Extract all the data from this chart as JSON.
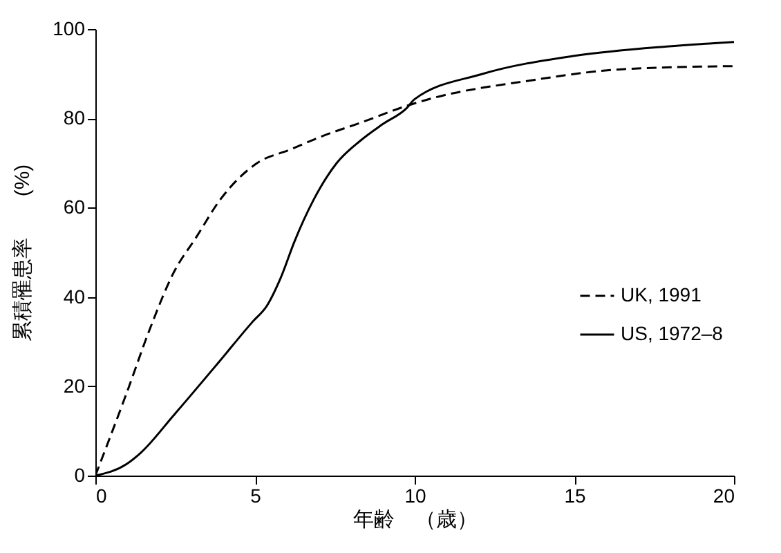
{
  "chart_data": {
    "type": "line",
    "xlabel": "年齢　（歳）",
    "ylabel": "累積罹患率　　(%)",
    "xlim": [
      0,
      20
    ],
    "xticks": [
      0,
      5,
      10,
      15,
      20
    ],
    "ylim": [
      0,
      100
    ],
    "yticks": [
      0,
      20,
      40,
      60,
      80,
      100
    ],
    "grid": false,
    "legend": "right",
    "marker": "none",
    "series": [
      {
        "name": "UK, 1991",
        "color": "#000000",
        "line_style": "dashed",
        "x": [
          0,
          0.98,
          1.71,
          2.44,
          3.17,
          3.9,
          5.07,
          6.1,
          7.1,
          8.3,
          9.75,
          10.5,
          13.55,
          16.5,
          20
        ],
        "values": [
          0,
          18.5,
          32.9,
          45.3,
          53.5,
          61.7,
          70,
          73,
          76,
          79,
          82.8,
          84.4,
          88.4,
          91,
          91.7
        ]
      },
      {
        "name": "US, 1972–8",
        "color": "#000000",
        "line_style": "solid",
        "x": [
          0,
          0.98,
          1.42,
          2.44,
          3.9,
          4.93,
          5.37,
          5.8,
          6.24,
          6.83,
          7.56,
          8.3,
          9.0,
          9.75,
          10.0,
          12.1,
          15.0,
          17.9,
          20
        ],
        "values": [
          0,
          2.6,
          5.1,
          13.4,
          25.7,
          34.5,
          38,
          44.2,
          52.5,
          61.7,
          70,
          75,
          78.7,
          82.3,
          84.3,
          89.9,
          94,
          96.1,
          97.1
        ]
      }
    ]
  }
}
